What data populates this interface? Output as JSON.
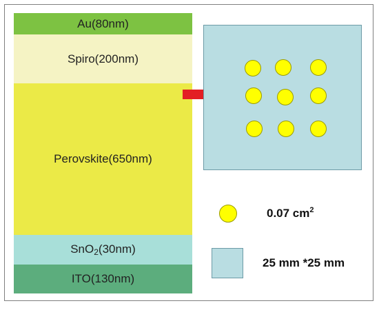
{
  "layers": [
    {
      "id": "au",
      "label": "Au(80nm)",
      "color": "#7dc242"
    },
    {
      "id": "spiro",
      "label": "Spiro(200nm)",
      "color": "#f5f3c4"
    },
    {
      "id": "perovskite",
      "label": "Perovskite(650nm)",
      "color": "#ebea47"
    },
    {
      "id": "sno2",
      "label_main": "SnO",
      "label_sub": "2",
      "label_suffix": "(30nm)",
      "color": "#a8dfd9"
    },
    {
      "id": "ito",
      "label": "ITO(130nm)",
      "color": "#5cad7d"
    }
  ],
  "device": {
    "substrate_color": "#b9dde2",
    "electrode_color": "#ffff00",
    "electrode_rows": 3,
    "electrode_cols": 3
  },
  "arrow": {
    "color": "#e31e24"
  },
  "legend": {
    "electrode_area": {
      "value": "0.07 cm",
      "sup": "2"
    },
    "substrate_size": "25 mm *25 mm"
  }
}
